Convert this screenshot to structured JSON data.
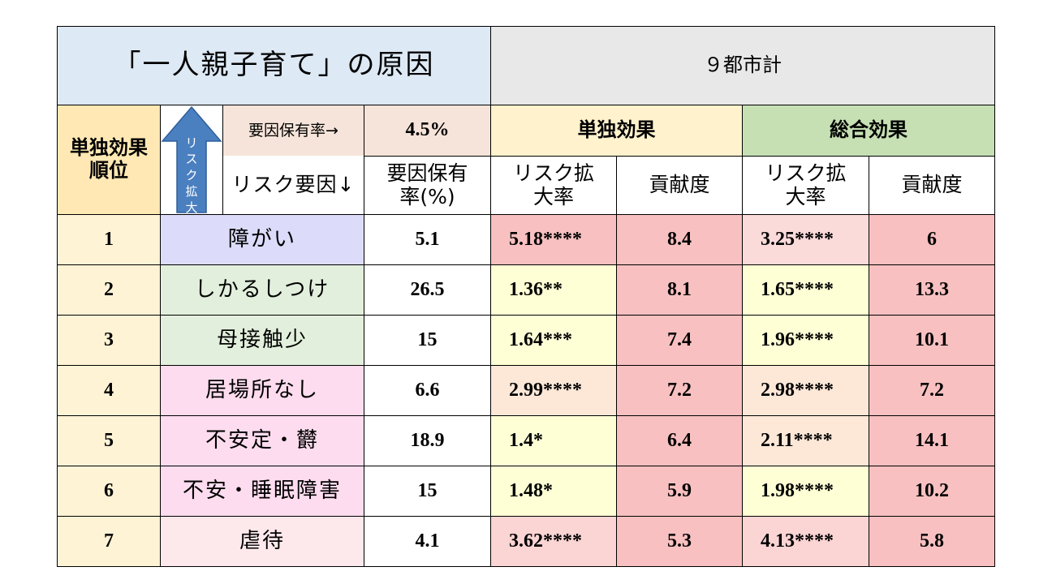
{
  "title": "「一人親子育て」の原因",
  "region": "９都市計",
  "header": {
    "rank_label": "単独効果\n順位",
    "arrow_text": "リスク拡大",
    "prevalence_arrow_label": "要因保有率→",
    "prevalence_total": "4.5%",
    "factor_label": "リスク要因↓",
    "prevalence_col": "要因保有\n率(%)",
    "single_effect": "単独効果",
    "total_effect": "総合効果",
    "risk_ratio": "リスク拡\n大率",
    "contribution": "貢献度"
  },
  "colors": {
    "title_bg": "#dde9f5",
    "region_bg": "#e8e8e8",
    "rank_bg": "#ffe8b3",
    "single_header_bg": "#fff2cc",
    "total_header_bg": "#c6e0b4",
    "arrow": "#4a7fc0",
    "red_strong": "#f8c0c0",
    "red_light": "#fbdada",
    "peach": "#fde8d8",
    "yellow": "#ffffd6"
  },
  "rows": [
    {
      "rank": "1",
      "factor": "障がい",
      "prev": "5.1",
      "s_rr": "5.18****",
      "s_c": "8.4",
      "t_rr": "3.25****",
      "t_c": "6"
    },
    {
      "rank": "2",
      "factor": "しかるしつけ",
      "prev": "26.5",
      "s_rr": "1.36**",
      "s_c": "8.1",
      "t_rr": "1.65****",
      "t_c": "13.3"
    },
    {
      "rank": "3",
      "factor": "母接触少",
      "prev": "15",
      "s_rr": "1.64***",
      "s_c": "7.4",
      "t_rr": "1.96****",
      "t_c": "10.1"
    },
    {
      "rank": "4",
      "factor": "居場所なし",
      "prev": "6.6",
      "s_rr": "2.99****",
      "s_c": "7.2",
      "t_rr": "2.98****",
      "t_c": "7.2"
    },
    {
      "rank": "5",
      "factor": "不安定・欝",
      "prev": "18.9",
      "s_rr": "1.4*",
      "s_c": "6.4",
      "t_rr": "2.11****",
      "t_c": "14.1"
    },
    {
      "rank": "6",
      "factor": "不安・睡眠障害",
      "prev": "15",
      "s_rr": "1.48*",
      "s_c": "5.9",
      "t_rr": "1.98****",
      "t_c": "10.2"
    },
    {
      "rank": "7",
      "factor": "虐待",
      "prev": "4.1",
      "s_rr": "3.62****",
      "s_c": "5.3",
      "t_rr": "4.13****",
      "t_c": "5.8"
    }
  ]
}
